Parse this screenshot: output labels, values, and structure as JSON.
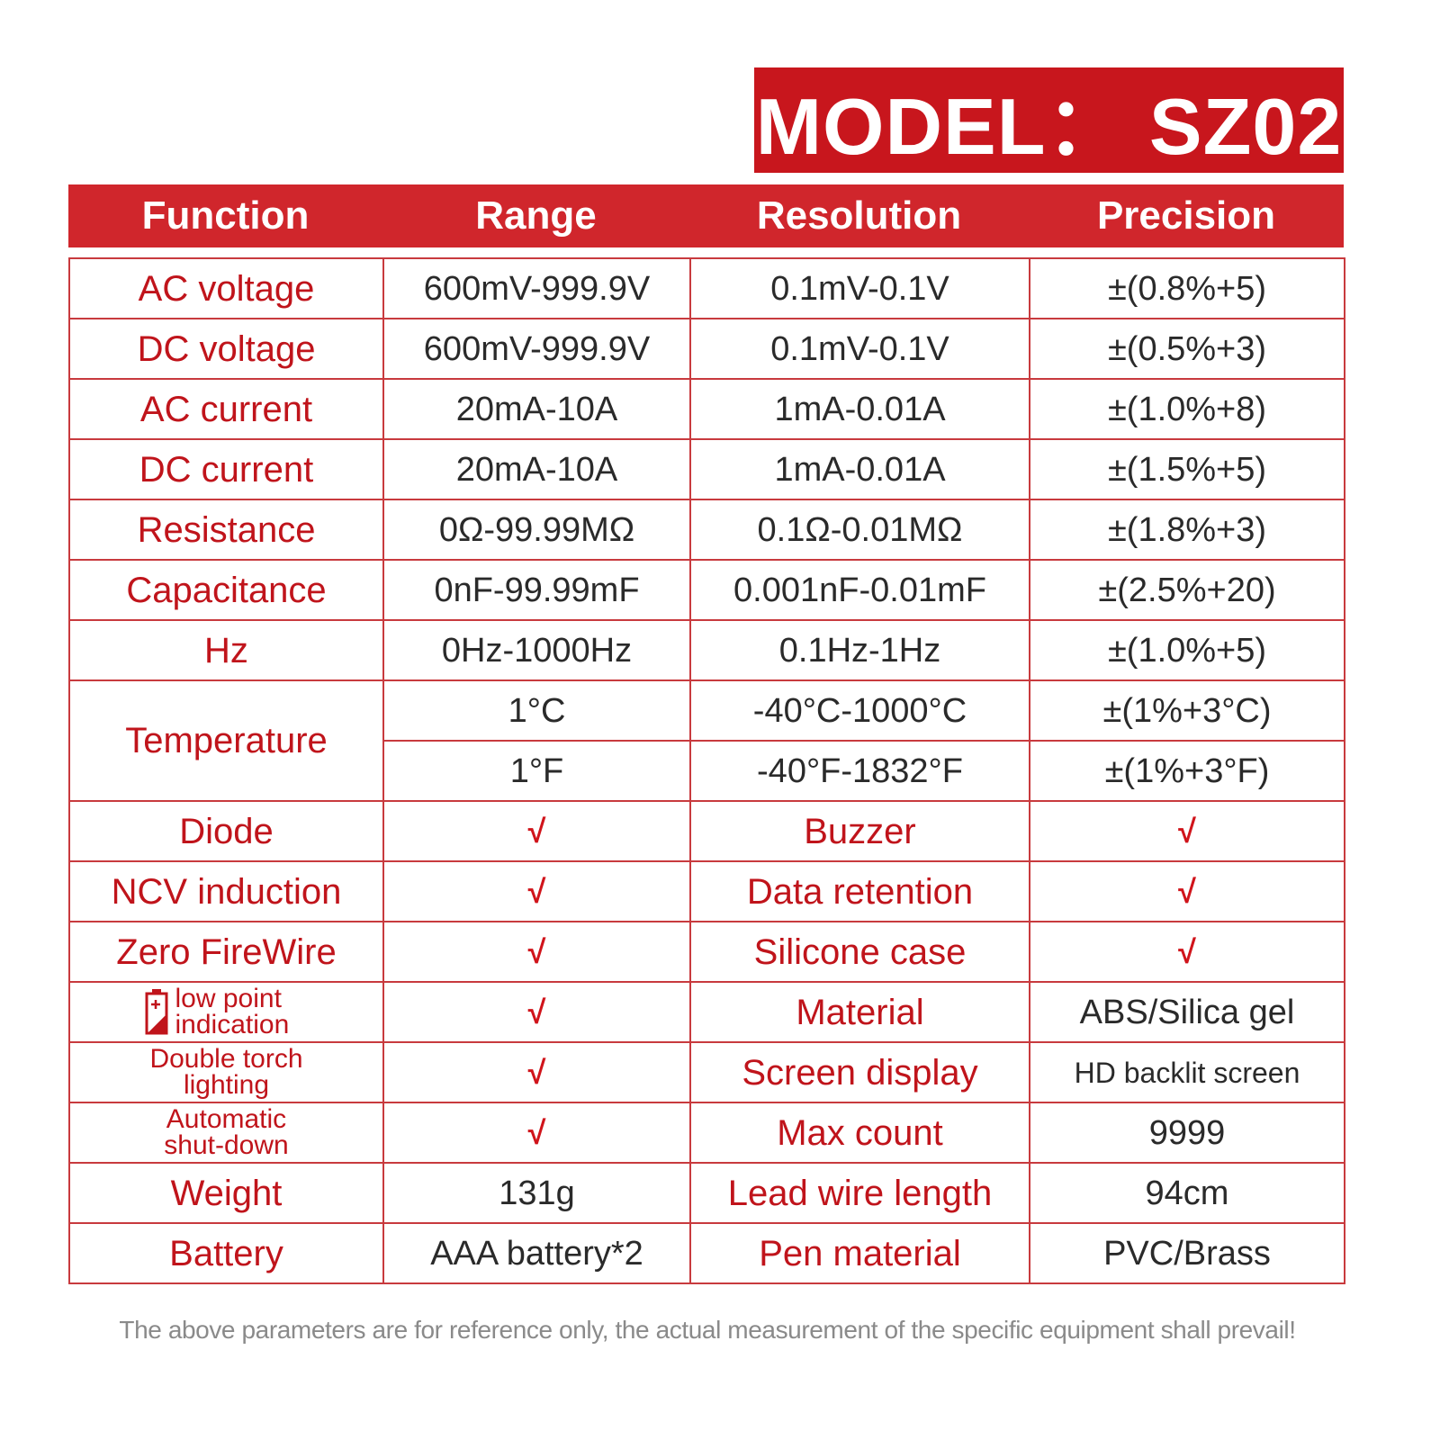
{
  "model_label": "MODEL： SZ02",
  "table": {
    "header": [
      "Function",
      "Range",
      "Resolution",
      "Precision"
    ],
    "rows": [
      [
        "AC voltage",
        "600mV-999.9V",
        "0.1mV-0.1V",
        "±(0.8%+5)"
      ],
      [
        "DC voltage",
        "600mV-999.9V",
        "0.1mV-0.1V",
        "±(0.5%+3)"
      ],
      [
        "AC current",
        "20mA-10A",
        "1mA-0.01A",
        "±(1.0%+8)"
      ],
      [
        "DC current",
        "20mA-10A",
        "1mA-0.01A",
        "±(1.5%+5)"
      ],
      [
        "Resistance",
        "0Ω-99.99MΩ",
        "0.1Ω-0.01MΩ",
        "±(1.8%+3)"
      ],
      [
        "Capacitance",
        "0nF-99.99mF",
        "0.001nF-0.01mF",
        "±(2.5%+20)"
      ],
      [
        "Hz",
        "0Hz-1000Hz",
        "0.1Hz-1Hz",
        "±(1.0%+5)"
      ],
      [
        "Temperature",
        "1°C",
        "-40°C-1000°C",
        "±(1%+3°C)"
      ],
      [
        "1°F",
        "-40°F-1832°F",
        "±(1%+3°F)"
      ],
      [
        "Diode",
        "√",
        "Buzzer",
        "√"
      ],
      [
        "NCV induction",
        "√",
        "Data retention",
        "√"
      ],
      [
        "Zero FireWire",
        "√",
        "Silicone case",
        "√"
      ],
      [
        "low point indication",
        "√",
        "Material",
        "ABS/Silica gel"
      ],
      [
        "Double torch lighting",
        "√",
        "Screen display",
        "HD backlit screen"
      ],
      [
        "Automatic shut-down",
        "√",
        "Max count",
        "9999"
      ],
      [
        "Weight",
        "131g",
        "Lead wire length",
        "94cm"
      ],
      [
        "Battery",
        "AAA battery*2",
        "Pen material",
        "PVC/Brass"
      ]
    ]
  },
  "footer_note": "The above parameters are for reference only, the actual measurement of the specific equipment shall prevail!"
}
